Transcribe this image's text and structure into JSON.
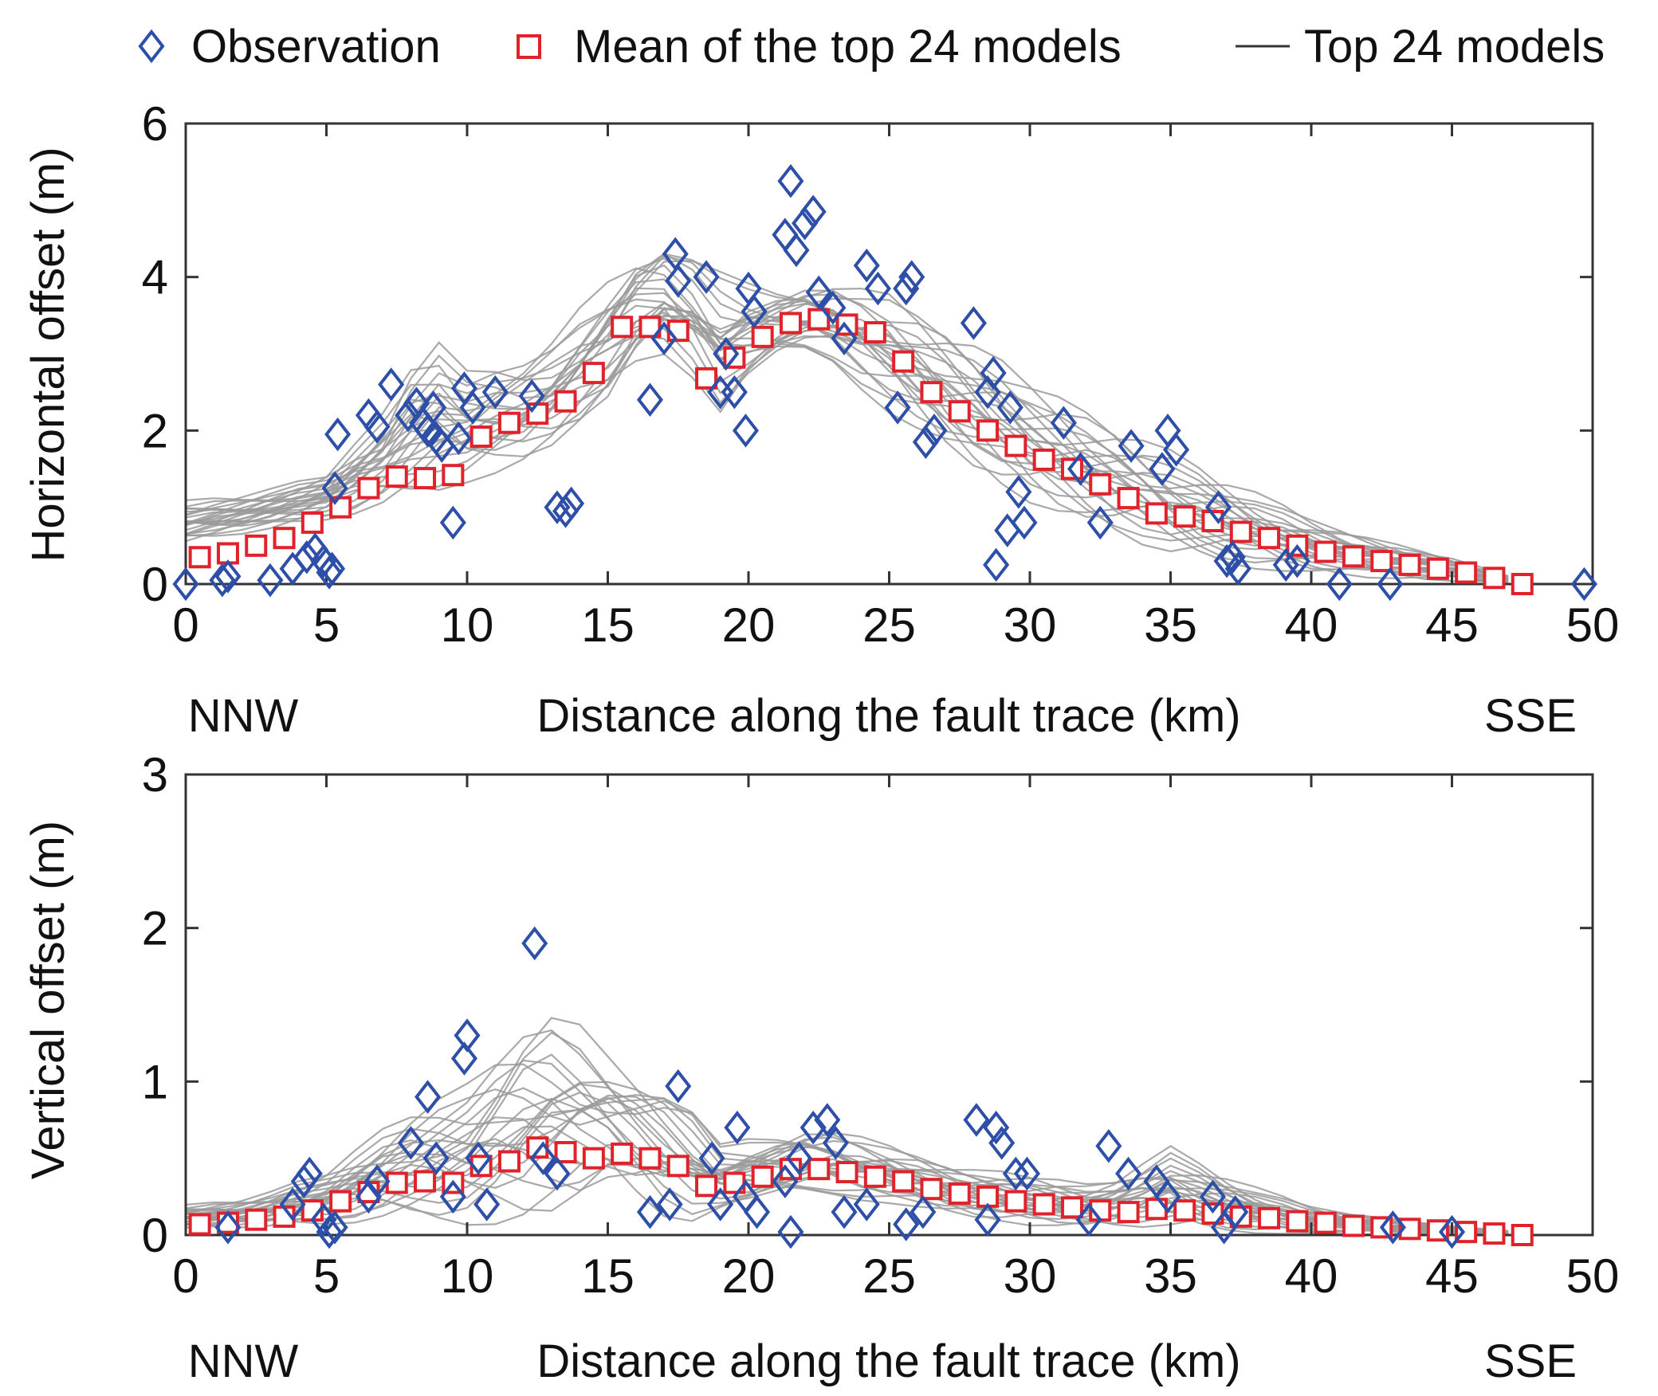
{
  "colors": {
    "observation": "#2e4fa8",
    "mean": "#e1222b",
    "model": "#9a9a9a",
    "axis": "#333333"
  },
  "legend": {
    "observation": "Observation",
    "mean": "Mean of the top 24 models",
    "models": "Top 24 models"
  },
  "chart_data": [
    {
      "type": "scatter",
      "id": "horizontal",
      "title": "",
      "xlabel": "Distance along the fault trace (km)",
      "xlabel_left": "NNW",
      "xlabel_right": "SSE",
      "ylabel": "Horizontal offset (m)",
      "xlim": [
        0,
        50
      ],
      "ylim": [
        0,
        6
      ],
      "xticks": [
        0,
        5,
        10,
        15,
        20,
        25,
        30,
        35,
        40,
        45,
        50
      ],
      "yticks": [
        0,
        2,
        4,
        6
      ],
      "observations": {
        "x": [
          0,
          1.3,
          1.5,
          3,
          3.8,
          4.3,
          4.6,
          4.9,
          5.1,
          5.2,
          5.3,
          5.4,
          6.5,
          6.8,
          7.3,
          7.9,
          8.2,
          8.4,
          8.6,
          8.8,
          8.9,
          9.1,
          9.5,
          9.7,
          9.9,
          10.2,
          11.0,
          12.3,
          13.2,
          13.5,
          13.7,
          16.5,
          17.0,
          17.4,
          17.5,
          18.5,
          19.0,
          19.2,
          19.5,
          19.9,
          20.0,
          20.2,
          21.3,
          21.5,
          21.7,
          22.0,
          22.3,
          22.5,
          23.0,
          23.4,
          24.2,
          24.6,
          25.3,
          25.6,
          25.8,
          26.3,
          26.6,
          28.0,
          28.5,
          28.7,
          28.8,
          29.2,
          29.6,
          29.3,
          29.8,
          31.2,
          31.8,
          32.5,
          33.6,
          34.7,
          34.9,
          35.2,
          36.7,
          37.0,
          37.2,
          37.4,
          39.1,
          39.5,
          41.0,
          42.8,
          49.7
        ],
        "y": [
          0,
          0.05,
          0.1,
          0.05,
          0.2,
          0.35,
          0.45,
          0.3,
          0.15,
          0.2,
          1.25,
          1.95,
          2.2,
          2.05,
          2.6,
          2.2,
          2.35,
          2.1,
          2.0,
          2.3,
          1.9,
          1.8,
          0.8,
          1.9,
          2.55,
          2.3,
          2.5,
          2.45,
          1.0,
          0.95,
          1.05,
          2.4,
          3.2,
          4.3,
          3.95,
          4.0,
          2.5,
          3.0,
          2.5,
          2.0,
          3.85,
          3.55,
          4.55,
          5.25,
          4.35,
          4.7,
          4.85,
          3.8,
          3.6,
          3.2,
          4.15,
          3.85,
          2.3,
          3.85,
          4.0,
          1.85,
          2.0,
          3.4,
          2.5,
          2.75,
          0.25,
          0.7,
          1.2,
          2.3,
          0.8,
          2.1,
          1.5,
          0.8,
          1.8,
          1.5,
          2.0,
          1.75,
          1.0,
          0.3,
          0.35,
          0.2,
          0.25,
          0.3,
          0.0,
          0.0,
          0.0
        ]
      },
      "mean": {
        "x": [
          0.5,
          1.5,
          2.5,
          3.5,
          4.5,
          5.5,
          6.5,
          7.5,
          8.5,
          9.5,
          10.5,
          11.5,
          12.5,
          13.5,
          14.5,
          15.5,
          16.5,
          17.5,
          18.5,
          19.5,
          20.5,
          21.5,
          22.5,
          23.5,
          24.5,
          25.5,
          26.5,
          27.5,
          28.5,
          29.5,
          30.5,
          31.5,
          32.5,
          33.5,
          34.5,
          35.5,
          36.5,
          37.5,
          38.5,
          39.5,
          40.5,
          41.5,
          42.5,
          43.5,
          44.5,
          45.5,
          46.5,
          47.5
        ],
        "y": [
          0.35,
          0.4,
          0.5,
          0.6,
          0.8,
          1.0,
          1.25,
          1.4,
          1.38,
          1.42,
          1.92,
          2.1,
          2.22,
          2.38,
          2.75,
          3.35,
          3.35,
          3.3,
          2.68,
          2.95,
          3.22,
          3.4,
          3.45,
          3.38,
          3.28,
          2.9,
          2.5,
          2.25,
          2.0,
          1.8,
          1.62,
          1.5,
          1.3,
          1.12,
          0.92,
          0.88,
          0.82,
          0.68,
          0.6,
          0.5,
          0.42,
          0.36,
          0.3,
          0.25,
          0.2,
          0.15,
          0.08,
          0.0
        ]
      },
      "models_summary": {
        "x": [
          0,
          2.5,
          5,
          7.5,
          8.5,
          10,
          12.5,
          15,
          16.5,
          17.5,
          19,
          20.5,
          22.5,
          25,
          27.5,
          30,
          32.5,
          35,
          37.5,
          40,
          42.5,
          45,
          47.5
        ],
        "low": [
          0.5,
          0.65,
          0.8,
          1.0,
          1.0,
          1.3,
          1.6,
          2.2,
          2.9,
          2.9,
          2.1,
          2.8,
          3.0,
          2.2,
          1.5,
          1.0,
          0.6,
          0.3,
          0.2,
          0.12,
          0.05,
          0.02,
          0
        ],
        "high": [
          1.1,
          1.2,
          1.5,
          2.5,
          3.45,
          2.8,
          3.0,
          4.1,
          4.65,
          4.5,
          4.1,
          3.9,
          4.0,
          3.85,
          3.3,
          2.7,
          2.3,
          1.8,
          1.3,
          0.9,
          0.6,
          0.35,
          0.05
        ]
      }
    },
    {
      "type": "scatter",
      "id": "vertical",
      "title": "",
      "xlabel": "Distance along the fault trace (km)",
      "xlabel_left": "NNW",
      "xlabel_right": "SSE",
      "ylabel": "Vertical offset (m)",
      "xlim": [
        0,
        50
      ],
      "ylim": [
        0,
        3
      ],
      "xticks": [
        0,
        5,
        10,
        15,
        20,
        25,
        30,
        35,
        40,
        45,
        50
      ],
      "yticks": [
        0,
        1,
        2,
        3
      ],
      "observations": {
        "x": [
          1.5,
          3.8,
          4.2,
          4.4,
          4.9,
          5.1,
          5.3,
          6.5,
          6.8,
          8.0,
          8.6,
          8.9,
          9.5,
          9.9,
          10.0,
          10.4,
          10.7,
          12.4,
          12.7,
          13.2,
          16.5,
          17.2,
          17.5,
          18.7,
          19.0,
          19.6,
          19.9,
          20.3,
          21.3,
          21.5,
          21.8,
          22.3,
          22.8,
          23.1,
          23.4,
          24.2,
          25.6,
          26.2,
          28.1,
          28.5,
          28.8,
          29.0,
          29.5,
          29.9,
          32.1,
          32.8,
          33.5,
          34.5,
          34.9,
          36.5,
          36.9,
          37.3,
          42.9,
          45.0
        ],
        "y": [
          0.05,
          0.2,
          0.35,
          0.4,
          0.1,
          0.02,
          0.05,
          0.25,
          0.35,
          0.6,
          0.9,
          0.5,
          0.25,
          1.15,
          1.3,
          0.5,
          0.2,
          1.9,
          0.5,
          0.4,
          0.15,
          0.2,
          0.97,
          0.5,
          0.2,
          0.7,
          0.25,
          0.15,
          0.35,
          0.02,
          0.5,
          0.7,
          0.75,
          0.6,
          0.15,
          0.2,
          0.07,
          0.15,
          0.75,
          0.1,
          0.7,
          0.6,
          0.4,
          0.4,
          0.1,
          0.58,
          0.4,
          0.35,
          0.25,
          0.25,
          0.05,
          0.15,
          0.05,
          0.02
        ]
      },
      "mean": {
        "x": [
          0.5,
          1.5,
          2.5,
          3.5,
          4.5,
          5.5,
          6.5,
          7.5,
          8.5,
          9.5,
          10.5,
          11.5,
          12.5,
          13.5,
          14.5,
          15.5,
          16.5,
          17.5,
          18.5,
          19.5,
          20.5,
          21.5,
          22.5,
          23.5,
          24.5,
          25.5,
          26.5,
          27.5,
          28.5,
          29.5,
          30.5,
          31.5,
          32.5,
          33.5,
          34.5,
          35.5,
          36.5,
          37.5,
          38.5,
          39.5,
          40.5,
          41.5,
          42.5,
          43.5,
          44.5,
          45.5,
          46.5,
          47.5
        ],
        "y": [
          0.07,
          0.08,
          0.1,
          0.12,
          0.16,
          0.22,
          0.28,
          0.34,
          0.35,
          0.34,
          0.45,
          0.48,
          0.57,
          0.54,
          0.5,
          0.53,
          0.5,
          0.45,
          0.32,
          0.34,
          0.38,
          0.43,
          0.43,
          0.41,
          0.38,
          0.35,
          0.3,
          0.27,
          0.25,
          0.22,
          0.2,
          0.18,
          0.16,
          0.15,
          0.17,
          0.16,
          0.14,
          0.12,
          0.11,
          0.09,
          0.08,
          0.06,
          0.05,
          0.04,
          0.03,
          0.02,
          0.01,
          0.0
        ]
      },
      "models_summary": {
        "x": [
          0,
          2.5,
          5,
          7.5,
          10,
          12.5,
          13.5,
          15,
          17.5,
          19,
          22.5,
          25,
          27.5,
          30,
          32.5,
          35,
          37.5,
          40,
          42.5,
          45,
          47.5
        ],
        "low": [
          0.03,
          0.04,
          0.05,
          0.08,
          0.05,
          0.05,
          0.1,
          0.25,
          0.02,
          0.15,
          0.25,
          0.2,
          0.1,
          0.05,
          0.03,
          0.02,
          0.01,
          0.0,
          0.0,
          0.0,
          0.0
        ],
        "high": [
          0.2,
          0.25,
          0.45,
          0.8,
          1.0,
          1.5,
          1.5,
          1.25,
          1.0,
          0.6,
          0.75,
          0.6,
          0.45,
          0.4,
          0.35,
          0.6,
          0.35,
          0.2,
          0.12,
          0.06,
          0.02
        ]
      }
    }
  ]
}
